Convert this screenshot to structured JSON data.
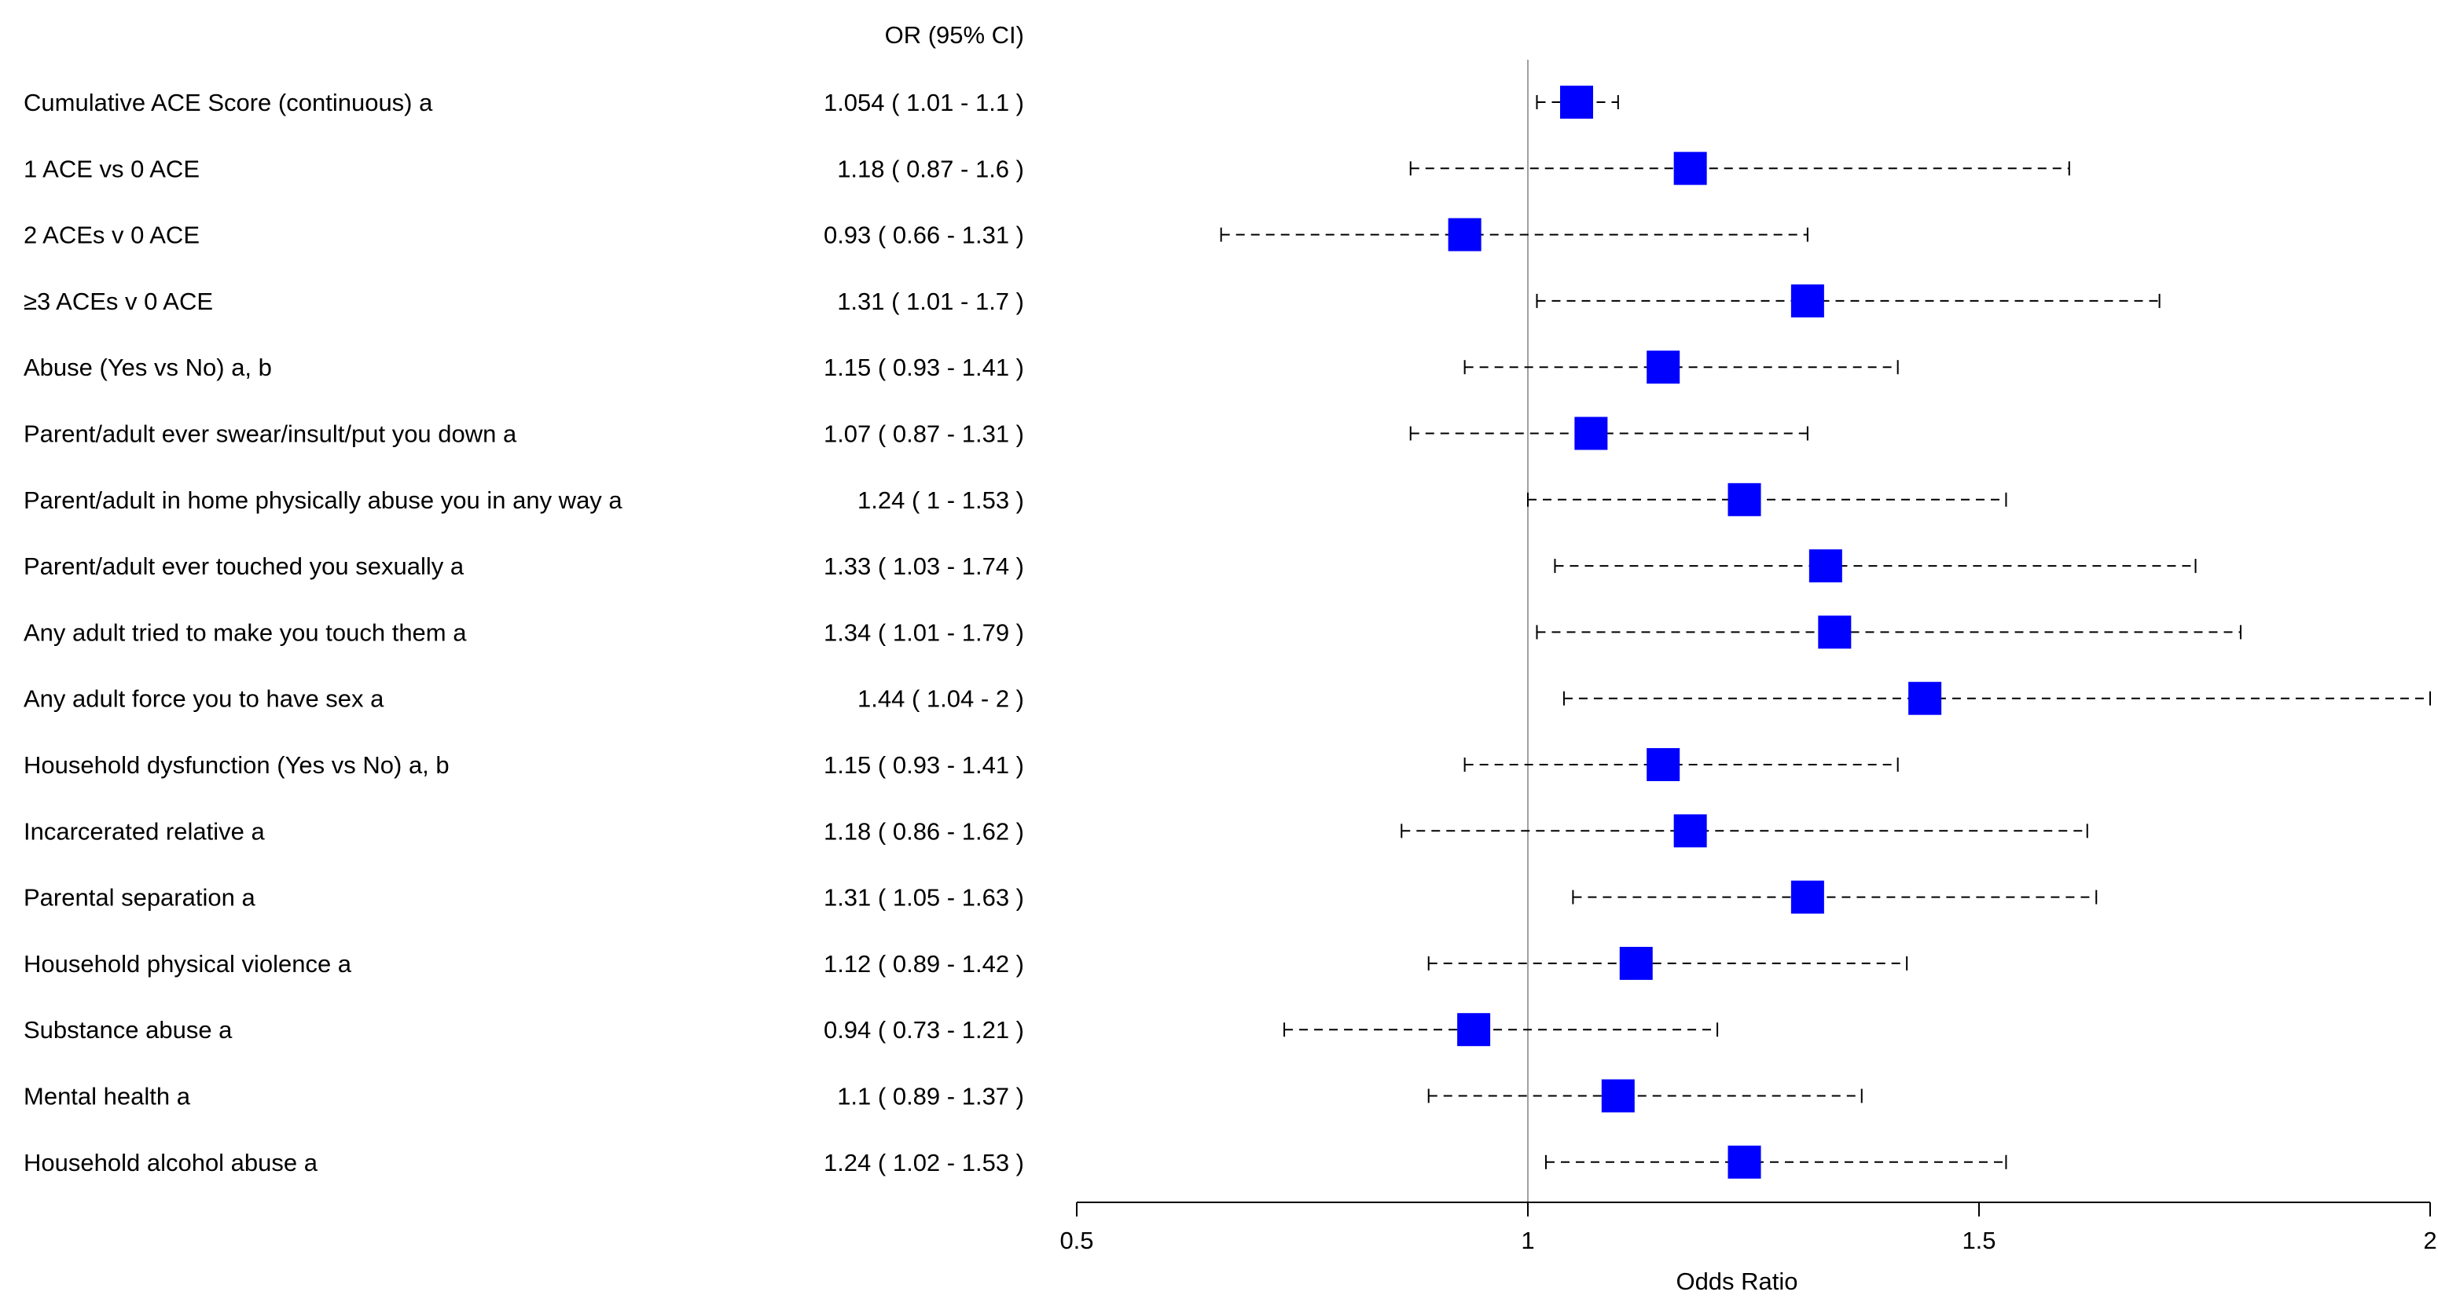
{
  "chart_data": {
    "type": "forest",
    "column_header": "OR (95% CI)",
    "xlabel": "Odds Ratio",
    "xlim": [
      0.5,
      2
    ],
    "xticks": [
      0.5,
      1,
      1.5,
      2
    ],
    "reference_line": 1,
    "marker_color": "#0000ff",
    "rows": [
      {
        "label": "Cumulative ACE Score (continuous) a",
        "ci_text": "1.054 ( 1.01 - 1.1 )",
        "or": 1.054,
        "lo": 1.01,
        "hi": 1.1
      },
      {
        "label": "1 ACE vs 0 ACE",
        "ci_text": "1.18 ( 0.87 - 1.6 )",
        "or": 1.18,
        "lo": 0.87,
        "hi": 1.6
      },
      {
        "label": "2 ACEs v 0 ACE",
        "ci_text": "0.93 ( 0.66 - 1.31 )",
        "or": 0.93,
        "lo": 0.66,
        "hi": 1.31
      },
      {
        "label": "≥3 ACEs v 0 ACE",
        "ci_text": "1.31 ( 1.01 - 1.7 )",
        "or": 1.31,
        "lo": 1.01,
        "hi": 1.7
      },
      {
        "label": "Abuse (Yes vs No) a, b",
        "ci_text": "1.15 ( 0.93 - 1.41 )",
        "or": 1.15,
        "lo": 0.93,
        "hi": 1.41
      },
      {
        "label": "Parent/adult ever swear/insult/put you down a",
        "ci_text": "1.07 ( 0.87 - 1.31 )",
        "or": 1.07,
        "lo": 0.87,
        "hi": 1.31
      },
      {
        "label": "Parent/adult in home physically abuse you in any way a",
        "ci_text": "1.24 ( 1 - 1.53 )",
        "or": 1.24,
        "lo": 1.0,
        "hi": 1.53
      },
      {
        "label": "Parent/adult ever touched you sexually a",
        "ci_text": "1.33 ( 1.03 - 1.74 )",
        "or": 1.33,
        "lo": 1.03,
        "hi": 1.74
      },
      {
        "label": "Any adult tried to make you touch them a",
        "ci_text": "1.34 ( 1.01 - 1.79 )",
        "or": 1.34,
        "lo": 1.01,
        "hi": 1.79
      },
      {
        "label": "Any adult force you to have sex a",
        "ci_text": "1.44 ( 1.04 - 2 )",
        "or": 1.44,
        "lo": 1.04,
        "hi": 2.0
      },
      {
        "label": "Household dysfunction (Yes vs No) a, b",
        "ci_text": "1.15 ( 0.93 - 1.41 )",
        "or": 1.15,
        "lo": 0.93,
        "hi": 1.41
      },
      {
        "label": "Incarcerated relative a",
        "ci_text": "1.18 ( 0.86 - 1.62 )",
        "or": 1.18,
        "lo": 0.86,
        "hi": 1.62
      },
      {
        "label": "Parental separation a",
        "ci_text": "1.31 ( 1.05 - 1.63 )",
        "or": 1.31,
        "lo": 1.05,
        "hi": 1.63
      },
      {
        "label": "Household physical violence a",
        "ci_text": "1.12 ( 0.89 - 1.42 )",
        "or": 1.12,
        "lo": 0.89,
        "hi": 1.42
      },
      {
        "label": "Substance abuse a",
        "ci_text": "0.94 ( 0.73 - 1.21 )",
        "or": 0.94,
        "lo": 0.73,
        "hi": 1.21
      },
      {
        "label": "Mental health a",
        "ci_text": "1.1 ( 0.89 - 1.37 )",
        "or": 1.1,
        "lo": 0.89,
        "hi": 1.37
      },
      {
        "label": "Household alcohol abuse a",
        "ci_text": "1.24 ( 1.02 - 1.53 )",
        "or": 1.24,
        "lo": 1.02,
        "hi": 1.53
      }
    ]
  }
}
